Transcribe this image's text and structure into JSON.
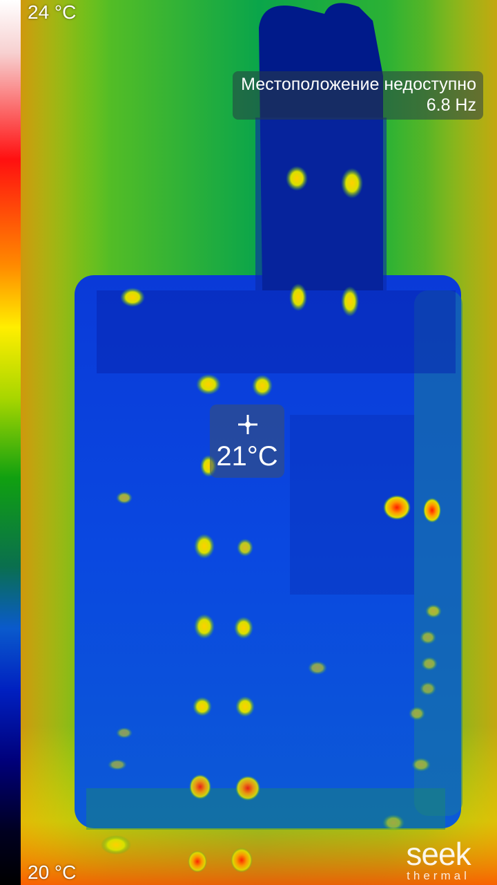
{
  "scale": {
    "max_label": "24 °C",
    "min_label": "20 °C"
  },
  "status": {
    "location_text": "Местоположение недоступно",
    "frame_rate": "6.8 Hz"
  },
  "spot": {
    "temperature": "21°C",
    "icon": "crosshair-icon"
  },
  "logo": {
    "main": "seek",
    "sub": "thermal",
    "color": "#ffffff"
  },
  "palette": {
    "hot": "#ff1010",
    "warm": "#ffee00",
    "mid": "#10a010",
    "cool": "#0a5acc",
    "cold": "#00007a"
  }
}
